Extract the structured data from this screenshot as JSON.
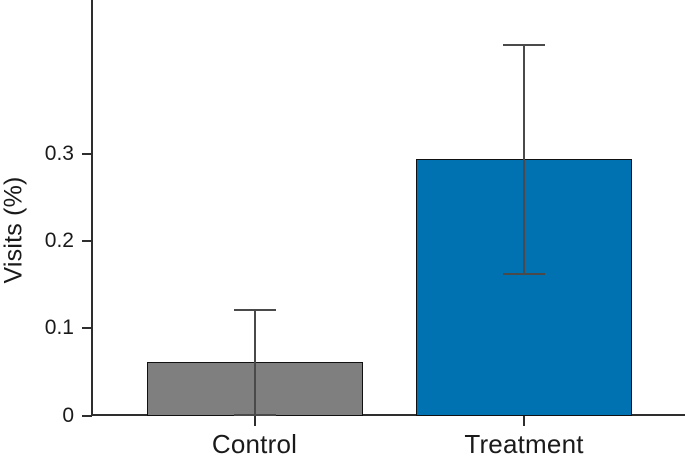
{
  "chart_data": {
    "type": "bar",
    "categories": [
      "Control",
      "Treatment"
    ],
    "values": [
      0.061,
      0.294
    ],
    "error_low": [
      0.001,
      0.163
    ],
    "error_high": [
      0.121,
      0.425
    ],
    "title": "",
    "xlabel": "",
    "ylabel": "Visits (%)",
    "ytick_values": [
      0,
      0.1,
      0.2,
      0.3
    ],
    "ytick_labels": [
      "0",
      "0.1",
      "0.2",
      "0.3"
    ],
    "ylim": [
      0,
      0.477
    ],
    "grid": false,
    "legend": false,
    "bar_colors": [
      "#7f7f7f",
      "#0072b2"
    ],
    "bar_edge_color": "#111111",
    "error_bar_color": "#4a4a4a",
    "axis_color": "#2e2e2e",
    "text_color": "#1a1a1a",
    "background": "#ffffff"
  }
}
